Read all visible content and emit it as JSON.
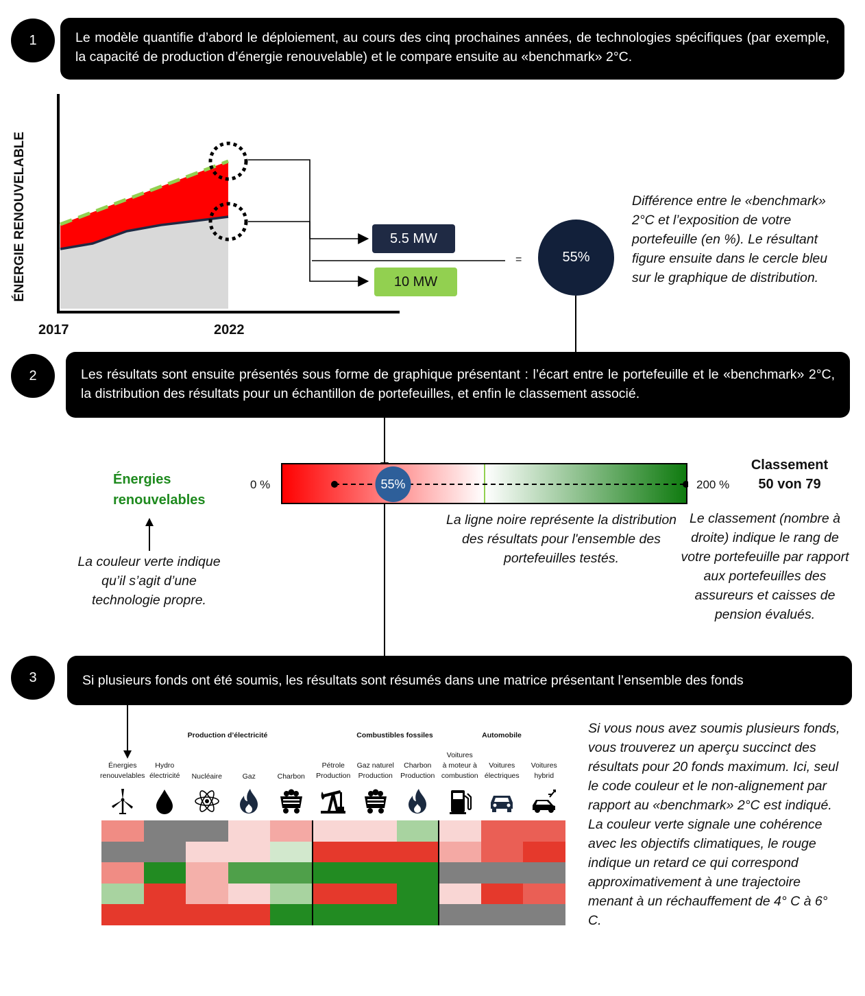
{
  "steps": [
    {
      "number": "1",
      "text": "Le modèle quantifie d’abord le déploiement, au cours des cinq prochaines années, de technologies spécifiques (par exemple, la capacité de production d’énergie renouvelable) et le compare ensuite au «benchmark» 2°C."
    },
    {
      "number": "2",
      "text": "Les résultats sont ensuite présentés sous forme de graphique présentant : l’écart entre le portefeuille et le «benchmark» 2°C, la distribution  des résultats pour un échantillon de portefeuilles, et enfin le classement associé."
    },
    {
      "number": "3",
      "text": "Si plusieurs fonds ont été soumis, les résultats sont résumés dans une matrice présentant l’ensemble des fonds"
    }
  ],
  "section1": {
    "y_axis_label": "ÉNERGIE RENOUVELABLE",
    "x_start": "2017",
    "x_end": "2022",
    "portfolio_value": "5.5 MW",
    "benchmark_value": "10 MW",
    "equals": "=",
    "result": "55%",
    "note": "Différence entre le «benchmark» 2°C et l’exposition de votre portefeuille (en %). Le résultant figure ensuite dans le cercle bleu sur le graphique de distribution.",
    "colors": {
      "benchmark": "#92d050",
      "gap": "#ff0000",
      "portfolio": "#1f2a44",
      "area": "#d9d9d9",
      "result_circle": "#12203a"
    }
  },
  "section2": {
    "tech_label": "Énergies renouvelables",
    "tech_note": "La couleur verte indique qu’il s’agit d’une technologie propre.",
    "scale_min": "0 %",
    "scale_max": "200 %",
    "marker_value": "55%",
    "marker_fraction": 0.275,
    "line_note": "La ligne noire représente la distribution des résultats pour l'ensemble des portefeuilles testés.",
    "ranking_title": "Classement",
    "ranking_value": "50 von 79",
    "ranking_note": "Le classement (nombre à droite) indique le rang de votre portefeuille par rapport aux portefeuilles des assureurs et caisses de pension évalués.",
    "colors": {
      "marker": "#2e5f9a",
      "tech_label": "#1e8a1e"
    }
  },
  "section3": {
    "categories": [
      "Production d’électricité",
      "Combustibles fossiles",
      "Automobile"
    ],
    "columns": [
      {
        "label": "Énergies renouvelables",
        "icon": "wind-turbine-icon"
      },
      {
        "label": "Hydro électricité",
        "icon": "water-drop-icon"
      },
      {
        "label": "Nucléaire",
        "icon": "atom-icon"
      },
      {
        "label": "Gaz",
        "icon": "flame-icon"
      },
      {
        "label": "Charbon",
        "icon": "coal-cart-icon"
      },
      {
        "label": "Pétrole Production",
        "icon": "oil-pump-icon"
      },
      {
        "label": "Gaz naturel Production",
        "icon": "coal-cart-icon"
      },
      {
        "label": "Charbon Production",
        "icon": "flame-icon"
      },
      {
        "label": "Voitures à moteur à combustion",
        "icon": "fuel-pump-icon"
      },
      {
        "label": "Voitures électriques",
        "icon": "car-icon"
      },
      {
        "label": "Voitures hybrid",
        "icon": "hybrid-car-icon"
      }
    ],
    "matrix": [
      [
        "#f08c84",
        "#808080",
        "#808080",
        "#f9d6d4",
        "#f4a9a4",
        "#f9d6d4",
        "#f9d6d4",
        "#a8d3a0",
        "#f9d6d4",
        "#ea5f55",
        "#ea5f55"
      ],
      [
        "#808080",
        "#808080",
        "#f9d6d4",
        "#f9d6d4",
        "#d2e8cd",
        "#e5392c",
        "#e5392c",
        "#e5392c",
        "#f4a9a4",
        "#ea5f55",
        "#e5392c"
      ],
      [
        "#f08c84",
        "#228b22",
        "#f4b0aa",
        "#4fa04a",
        "#4fa04a",
        "#228b22",
        "#228b22",
        "#228b22",
        "#808080",
        "#808080",
        "#808080"
      ],
      [
        "#a8d3a0",
        "#e5392c",
        "#f4b0aa",
        "#f9d6d4",
        "#a8d3a0",
        "#e5392c",
        "#e5392c",
        "#228b22",
        "#f9d6d4",
        "#e5392c",
        "#ea5f55"
      ],
      [
        "#e5392c",
        "#e5392c",
        "#e5392c",
        "#e5392c",
        "#228b22",
        "#228b22",
        "#228b22",
        "#228b22",
        "#808080",
        "#808080",
        "#808080"
      ]
    ],
    "note": "Si vous nous avez soumis plusieurs fonds, vous trouverez un aperçu succinct des résultats pour 20 fonds maximum. Ici, seul le code couleur et le non-alignement par rapport au «benchmark» 2°C est indiqué. La couleur verte signale une cohérence avec les objectifs climatiques, le rouge indique un retard ce qui correspond approximativement à une trajectoire menant à un réchauffement de 4° C à 6° C."
  }
}
